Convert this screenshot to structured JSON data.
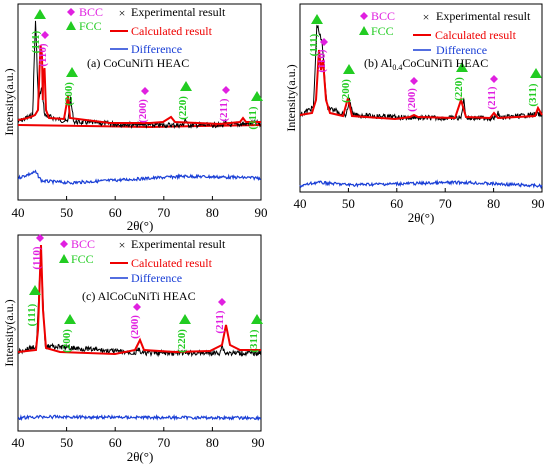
{
  "figure": {
    "panels": [
      {
        "title": "(a) CoCuNiTi HEAC",
        "ylabel": "Intensity(a.u.)",
        "xlabel": "2θ(°)",
        "xticks": [
          "40",
          "50",
          "60",
          "70",
          "80",
          "90"
        ],
        "legend": {
          "bcc": "BCC",
          "fcc": "FCC",
          "exp": "Experimental result",
          "calc": "Calculated result",
          "diff": "Difference"
        },
        "fcc_peaks": [
          {
            "label": "(111)",
            "x": 43.6
          },
          {
            "label": "(200)",
            "x": 50.8
          },
          {
            "label": "(220)",
            "x": 74.4
          },
          {
            "label": "(311)",
            "x": 89.3
          }
        ],
        "bcc_peaks": [
          {
            "label": "(110)",
            "x": 44.9
          },
          {
            "label": "(200)",
            "x": 65.5
          },
          {
            "label": "(211)",
            "x": 82.6
          }
        ]
      },
      {
        "title_main": "Al",
        "title_sub": "0.4",
        "title_rest": "CoCuNiTi  HEAC",
        "ylabel": "Intensity(a.u.)",
        "xlabel": "2θ(°)",
        "xticks": [
          "40",
          "50",
          "60",
          "70",
          "80",
          "90"
        ],
        "legend": {
          "bcc": "BCC",
          "fcc": "FCC",
          "exp": "Experimental result",
          "calc": "Calculated result",
          "diff": "Difference"
        },
        "fcc_peaks": [
          {
            "label": "(111)",
            "x": 43.5
          },
          {
            "label": "(200)",
            "x": 50.2
          },
          {
            "label": "(220)",
            "x": 73.8
          },
          {
            "label": "(311)",
            "x": 89.3
          }
        ],
        "bcc_peaks": [
          {
            "label": "(110)",
            "x": 44.6
          },
          {
            "label": "(200)",
            "x": 63.8
          },
          {
            "label": "(211)",
            "x": 80.9
          }
        ]
      },
      {
        "title": "(c) AlCoCuNiTi  HEAC",
        "ylabel": "Intensity(a.u.)",
        "xlabel": "2θ(°)",
        "xticks": [
          "40",
          "50",
          "60",
          "70",
          "80",
          "90"
        ],
        "legend": {
          "bcc": "BCC",
          "fcc": "FCC",
          "exp": "Experimental result",
          "calc": "Calculated result",
          "diff": "Difference"
        },
        "fcc_peaks": [
          {
            "label": "(111)",
            "x": 43.5
          },
          {
            "label": "(200)",
            "x": 50.8
          },
          {
            "label": "(220)",
            "x": 74.3
          },
          {
            "label": "(311)",
            "x": 89.3
          }
        ],
        "bcc_peaks": [
          {
            "label": "(110)",
            "x": 44.7
          },
          {
            "label": "(200)",
            "x": 64.8
          },
          {
            "label": "(211)",
            "x": 82.0
          }
        ]
      }
    ]
  },
  "chart_data": [
    {
      "type": "line",
      "title": "(a) CoCuNiTi HEAC",
      "xlabel": "2θ(°)",
      "ylabel": "Intensity(a.u.)",
      "xlim": [
        40,
        90
      ],
      "series": [
        {
          "name": "Experimental result",
          "x": [
            40,
            43.0,
            43.6,
            44.2,
            44.9,
            45.5,
            50.2,
            50.8,
            51.5,
            65.0,
            65.5,
            66.0,
            74.0,
            74.4,
            74.9,
            82.2,
            82.6,
            83.0,
            89.3,
            90
          ],
          "y": [
            0.06,
            0.12,
            1.0,
            0.25,
            0.38,
            0.12,
            0.06,
            0.27,
            0.06,
            0.03,
            0.05,
            0.03,
            0.03,
            0.09,
            0.03,
            0.03,
            0.06,
            0.03,
            0.05,
            0.03
          ]
        },
        {
          "name": "Calculated result",
          "x": [
            40,
            43.0,
            43.6,
            44.2,
            44.9,
            45.5,
            50.2,
            50.8,
            51.5,
            65.0,
            65.5,
            66.0,
            74.0,
            74.4,
            74.9,
            82.2,
            82.6,
            83.0,
            89.3,
            90
          ],
          "y": [
            0.06,
            0.12,
            0.98,
            0.25,
            0.36,
            0.12,
            0.06,
            0.26,
            0.06,
            0.03,
            0.05,
            0.03,
            0.03,
            0.09,
            0.03,
            0.03,
            0.06,
            0.03,
            0.05,
            0.03
          ]
        },
        {
          "name": "Difference",
          "x": [
            40,
            43.6,
            44.9,
            50.8,
            74.4,
            90
          ],
          "y": [
            0,
            0.1,
            -0.05,
            -0.08,
            0.03,
            0
          ]
        }
      ]
    },
    {
      "type": "line",
      "title": "Al0.4CoCuNiTi  HEAC",
      "xlabel": "2θ(°)",
      "ylabel": "Intensity(a.u.)",
      "xlim": [
        40,
        90
      ],
      "series": [
        {
          "name": "Experimental result",
          "x": [
            40,
            42.8,
            43.5,
            44.6,
            45.6,
            49.6,
            50.2,
            50.9,
            63.3,
            63.8,
            64.3,
            73.3,
            73.8,
            74.4,
            80.4,
            80.9,
            81.4,
            89.3,
            90
          ],
          "y": [
            0.06,
            0.14,
            1.0,
            0.78,
            0.14,
            0.06,
            0.22,
            0.06,
            0.03,
            0.05,
            0.03,
            0.03,
            0.22,
            0.03,
            0.03,
            0.08,
            0.03,
            0.07,
            0.04
          ]
        },
        {
          "name": "Calculated result",
          "x": [
            40,
            42.8,
            43.5,
            44.6,
            45.6,
            49.6,
            50.2,
            50.9,
            63.3,
            63.8,
            64.3,
            73.3,
            73.8,
            74.4,
            80.4,
            80.9,
            81.4,
            89.3,
            90
          ],
          "y": [
            0.06,
            0.14,
            0.95,
            0.75,
            0.14,
            0.06,
            0.21,
            0.06,
            0.03,
            0.05,
            0.03,
            0.03,
            0.21,
            0.03,
            0.03,
            0.08,
            0.03,
            0.07,
            0.04
          ]
        },
        {
          "name": "Difference",
          "x": [
            40,
            43.5,
            50.2,
            73.8,
            90
          ],
          "y": [
            0,
            0.06,
            0.02,
            0.06,
            0
          ]
        }
      ]
    },
    {
      "type": "line",
      "title": "(c) AlCoCuNiTi  HEAC",
      "xlabel": "2θ(°)",
      "ylabel": "Intensity(a.u.)",
      "xlim": [
        40,
        90
      ],
      "series": [
        {
          "name": "Experimental result",
          "x": [
            40,
            43.8,
            44.7,
            45.6,
            64.2,
            64.8,
            65.4,
            81.4,
            82.0,
            82.6,
            90
          ],
          "y": [
            0.04,
            0.1,
            1.0,
            0.1,
            0.03,
            0.07,
            0.03,
            0.03,
            0.1,
            0.03,
            0.03
          ]
        },
        {
          "name": "Calculated result",
          "x": [
            40,
            43.8,
            44.7,
            45.6,
            64.2,
            64.8,
            65.4,
            81.4,
            82.0,
            82.6,
            90
          ],
          "y": [
            0.04,
            0.1,
            0.97,
            0.1,
            0.03,
            0.07,
            0.03,
            0.03,
            0.1,
            0.03,
            0.03
          ]
        },
        {
          "name": "Difference",
          "x": [
            40,
            44.7,
            90
          ],
          "y": [
            0,
            0.02,
            0
          ]
        }
      ]
    }
  ]
}
